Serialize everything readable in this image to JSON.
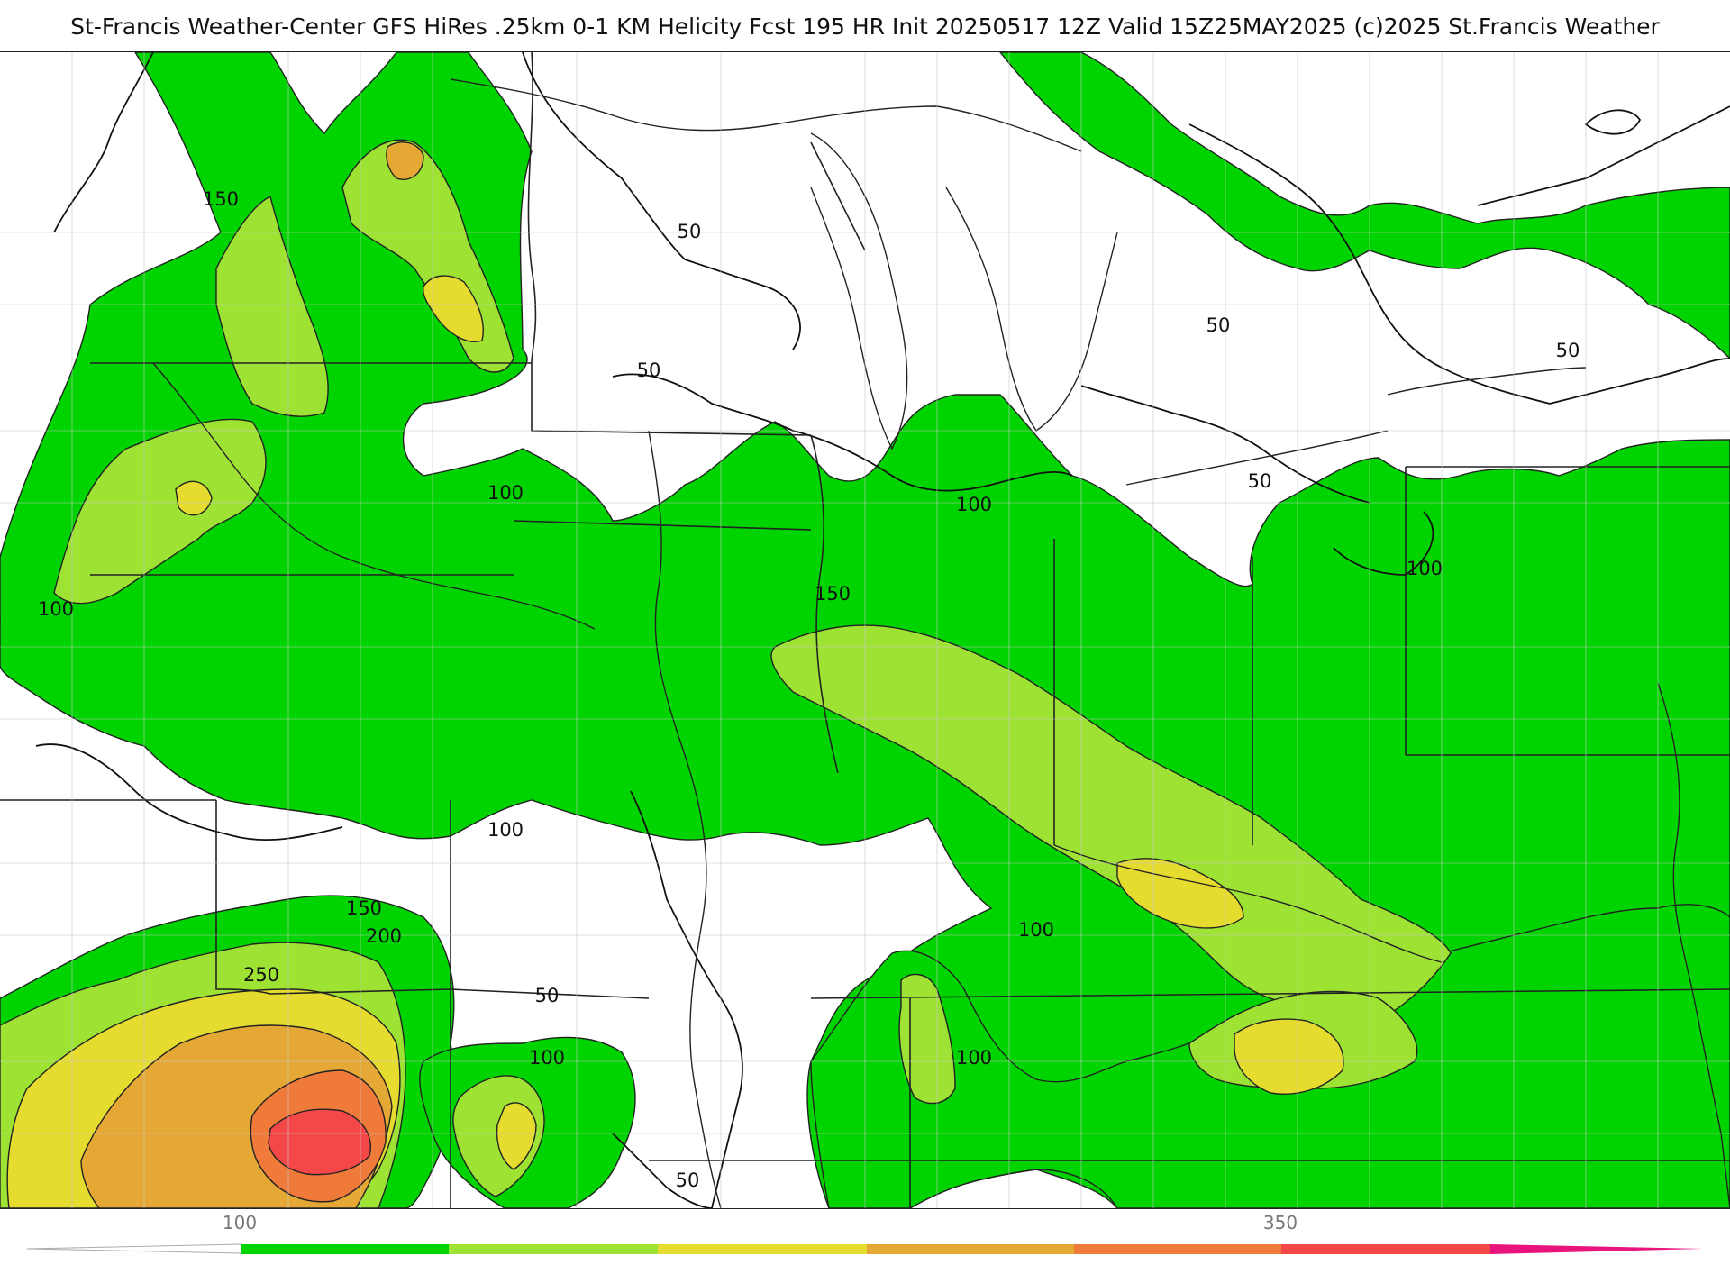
{
  "header": {
    "title": "St-Francis Weather-Center GFS HiRes .25km 0-1 KM Helicity Fcst 195 HR Init 20250517 12Z  Valid 15Z25MAY2025    (c)2025 St.Francis Weather"
  },
  "map": {
    "field": "0-1 KM Helicity",
    "fill_colors": {
      "100": "#00d400",
      "150": "#9ee234",
      "200": "#e6dc30",
      "250": "#e6a834",
      "300": "#ef7a3a",
      "350": "#f44848",
      "400": "#e8147c"
    },
    "contour_labels": [
      {
        "id": "c1",
        "text": "150"
      },
      {
        "id": "c2",
        "text": "50"
      },
      {
        "id": "c3",
        "text": "50"
      },
      {
        "id": "c4",
        "text": "50"
      },
      {
        "id": "c5",
        "text": "50"
      },
      {
        "id": "c6",
        "text": "50"
      },
      {
        "id": "c7",
        "text": "100"
      },
      {
        "id": "c8",
        "text": "100"
      },
      {
        "id": "c9",
        "text": "150"
      },
      {
        "id": "c10",
        "text": "100"
      },
      {
        "id": "c11",
        "text": "100"
      },
      {
        "id": "c12",
        "text": "100"
      },
      {
        "id": "c13",
        "text": "150"
      },
      {
        "id": "c14",
        "text": "200"
      },
      {
        "id": "c15",
        "text": "250"
      },
      {
        "id": "c16",
        "text": "100"
      },
      {
        "id": "c17",
        "text": "50"
      },
      {
        "id": "c18",
        "text": "100"
      },
      {
        "id": "c19",
        "text": "100"
      },
      {
        "id": "c20",
        "text": "50"
      }
    ]
  },
  "colorbar": {
    "ticks": [
      {
        "id": "t100",
        "text": "100"
      },
      {
        "id": "t350",
        "text": "350"
      }
    ]
  }
}
